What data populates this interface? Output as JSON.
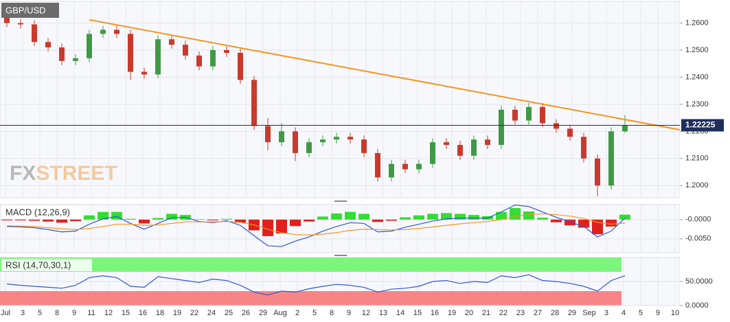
{
  "chart_data": [
    {
      "type": "candlestick",
      "title": "GBP/USD",
      "watermark": {
        "fx": "FX",
        "street": "STREET"
      },
      "x_labels": [
        "Jul",
        "3",
        "5",
        "8",
        "9",
        "11",
        "12",
        "15",
        "16",
        "18",
        "19",
        "22",
        "24",
        "25",
        "26",
        "29",
        "Aug",
        "2",
        "5",
        "8",
        "9",
        "12",
        "13",
        "14",
        "15",
        "16",
        "19",
        "20",
        "21",
        "22",
        "23",
        "27",
        "28",
        "29",
        "Sep",
        "3",
        "4",
        "5",
        "9",
        "10"
      ],
      "open": [
        1.262,
        1.26,
        1.2595,
        1.253,
        1.251,
        1.246,
        1.247,
        1.256,
        1.2575,
        1.256,
        1.242,
        1.241,
        1.254,
        1.252,
        1.248,
        1.244,
        1.25,
        1.249,
        1.239,
        1.222,
        1.216,
        1.22,
        1.212,
        1.216,
        1.217,
        1.218,
        1.217,
        1.212,
        1.203,
        1.208,
        1.206,
        1.208,
        1.216,
        1.215,
        1.211,
        1.217,
        1.215,
        1.228,
        1.224,
        1.229,
        1.223,
        1.221,
        1.218,
        1.21,
        1.2,
        1.22
      ],
      "high": [
        1.2635,
        1.2615,
        1.261,
        1.2545,
        1.2525,
        1.2485,
        1.2575,
        1.259,
        1.259,
        1.2575,
        1.2435,
        1.2555,
        1.2555,
        1.2535,
        1.2495,
        1.2515,
        1.2515,
        1.2505,
        1.2405,
        1.225,
        1.223,
        1.2215,
        1.2175,
        1.2185,
        1.2195,
        1.2195,
        1.2185,
        1.2135,
        1.2095,
        1.2095,
        1.2095,
        1.2175,
        1.2175,
        1.2165,
        1.2185,
        1.2185,
        1.2295,
        1.2295,
        1.2305,
        1.2305,
        1.2245,
        1.2225,
        1.2195,
        1.2115,
        1.2215,
        1.226
      ],
      "low": [
        1.2585,
        1.258,
        1.2515,
        1.2495,
        1.2445,
        1.2445,
        1.2455,
        1.2545,
        1.2545,
        1.239,
        1.2395,
        1.2395,
        1.2505,
        1.2465,
        1.2425,
        1.2425,
        1.2475,
        1.2375,
        1.2205,
        1.213,
        1.2145,
        1.209,
        1.2105,
        1.2145,
        1.2155,
        1.2155,
        1.2105,
        1.2015,
        1.2015,
        1.2045,
        1.2045,
        1.2065,
        1.2135,
        1.2095,
        1.2095,
        1.2135,
        1.2135,
        1.2225,
        1.2225,
        1.2215,
        1.2195,
        1.2165,
        1.2085,
        1.196,
        1.1985,
        1.2195
      ],
      "close": [
        1.26,
        1.2595,
        1.253,
        1.251,
        1.246,
        1.247,
        1.256,
        1.2575,
        1.256,
        1.242,
        1.241,
        1.254,
        1.252,
        1.248,
        1.244,
        1.25,
        1.249,
        1.239,
        1.222,
        1.216,
        1.22,
        1.212,
        1.216,
        1.217,
        1.218,
        1.217,
        1.212,
        1.203,
        1.208,
        1.206,
        1.208,
        1.216,
        1.215,
        1.211,
        1.217,
        1.215,
        1.228,
        1.224,
        1.229,
        1.223,
        1.221,
        1.218,
        1.21,
        1.2,
        1.22,
        1.2222
      ],
      "up_color": "#3f9a45",
      "down_color": "#c93a2e",
      "trendline": {
        "x": [
          6,
          49
        ],
        "y": [
          1.2612,
          1.2206
        ],
        "color": "#f7941d"
      },
      "last_price": 1.22225,
      "ylim": [
        1.1955,
        1.268
      ],
      "yticks": [
        {
          "value": 1.2,
          "label": "1.2000"
        },
        {
          "value": 1.21,
          "label": "1.2100"
        },
        {
          "value": 1.22,
          "label": "1.2200"
        },
        {
          "value": 1.23,
          "label": "1.2300"
        },
        {
          "value": 1.24,
          "label": "1.2400"
        },
        {
          "value": 1.25,
          "label": "1.2500"
        },
        {
          "value": 1.26,
          "label": "1.2600"
        }
      ],
      "grid": true
    },
    {
      "type": "macd",
      "title": "MACD (12,26,9)",
      "series": [
        {
          "name": "MACD",
          "color": "#2f55d4",
          "values": [
            -0.0018,
            -0.0019,
            -0.0021,
            -0.0026,
            -0.0032,
            -0.003,
            -0.0012,
            0.0002,
            0.0008,
            -0.001,
            -0.0025,
            -0.001,
            0.0005,
            0.0006,
            -0.0005,
            -0.0008,
            -0.0003,
            -0.0015,
            -0.0042,
            -0.0068,
            -0.007,
            -0.0056,
            -0.0045,
            -0.003,
            -0.0018,
            -0.0008,
            -0.001,
            -0.0032,
            -0.003,
            -0.002,
            -0.0012,
            -0.0004,
            0.0002,
            0.0004,
            0.0004,
            0.0004,
            0.002,
            0.0038,
            0.0034,
            0.002,
            0.0006,
            -0.0006,
            -0.0018,
            -0.0045,
            -0.003,
            0.0004
          ]
        },
        {
          "name": "Signal",
          "color": "#f7941d",
          "values": [
            -0.0016,
            -0.0017,
            -0.0018,
            -0.0021,
            -0.0024,
            -0.0026,
            -0.0023,
            -0.0018,
            -0.0012,
            -0.0012,
            -0.0015,
            -0.0014,
            -0.001,
            -0.0006,
            -0.0006,
            -0.0006,
            -0.0005,
            -0.0007,
            -0.0014,
            -0.0025,
            -0.0034,
            -0.0039,
            -0.004,
            -0.0038,
            -0.0034,
            -0.0028,
            -0.0025,
            -0.0026,
            -0.0027,
            -0.0026,
            -0.0023,
            -0.0019,
            -0.0015,
            -0.0011,
            -0.0008,
            -0.0005,
            0.0,
            0.0008,
            0.0013,
            0.0015,
            0.0013,
            0.0009,
            0.0003,
            -0.0007,
            -0.0012,
            -0.0009
          ]
        }
      ],
      "histogram": [
        -0.0002,
        -0.0002,
        -0.0003,
        -0.0005,
        -0.0008,
        -0.0004,
        0.0011,
        0.002,
        0.002,
        0.0002,
        -0.001,
        0.0004,
        0.0015,
        0.0012,
        0.0001,
        -0.0002,
        0.0002,
        -0.0008,
        -0.0028,
        -0.0043,
        -0.0036,
        -0.0017,
        -0.0005,
        0.0008,
        0.0016,
        0.002,
        0.0015,
        -0.0006,
        -0.0003,
        0.0006,
        0.0011,
        0.0015,
        0.0017,
        0.0015,
        0.0012,
        0.0009,
        0.002,
        0.003,
        0.0021,
        0.0005,
        -0.0007,
        -0.0015,
        -0.0021,
        -0.0038,
        -0.0018,
        0.0013
      ],
      "hist_up_color": "#33dd33",
      "hist_down_color": "#e02020",
      "ylim": [
        -0.0086,
        0.0039
      ],
      "yticks": [
        {
          "value": 0,
          "label": "-0.0000"
        },
        {
          "value": -0.005,
          "label": "-0.0050"
        }
      ]
    },
    {
      "type": "rsi",
      "title": "RSI (14,70,30,1)",
      "series": [
        {
          "name": "RSI",
          "color": "#2f55d4",
          "values": [
            45,
            42,
            40,
            38,
            36,
            42,
            58,
            62,
            58,
            40,
            38,
            60,
            56,
            52,
            48,
            55,
            52,
            42,
            28,
            22,
            30,
            28,
            35,
            40,
            44,
            42,
            38,
            28,
            34,
            36,
            40,
            50,
            52,
            46,
            50,
            48,
            62,
            58,
            64,
            52,
            50,
            46,
            40,
            30,
            52,
            62
          ]
        }
      ],
      "bands": {
        "upper": 70,
        "lower": 30,
        "upper_color": "#7cf57c",
        "lower_color": "#f78585"
      },
      "ylim": [
        0,
        100
      ],
      "yticks": [
        {
          "value": 0,
          "label": "0.0000"
        },
        {
          "value": 50,
          "label": "50.0000"
        }
      ]
    }
  ]
}
